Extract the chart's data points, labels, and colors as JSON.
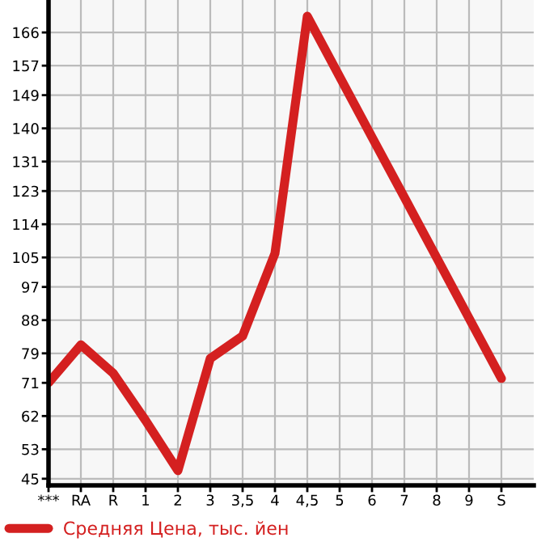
{
  "chart_data": {
    "type": "line",
    "categories": [
      "***",
      "RA",
      "R",
      "1",
      "2",
      "3",
      "3,5",
      "4",
      "4,5",
      "5",
      "6",
      "7",
      "8",
      "9",
      "S"
    ],
    "series": [
      {
        "name": "Средняя Цена, тыс. йен",
        "color": "#d42020",
        "values": [
          71.0,
          81.3,
          73.6,
          60.8,
          47.2,
          77.6,
          83.7,
          106.1,
          170.4,
          154.0,
          137.6,
          121.3,
          104.9,
          88.5,
          72.2
        ]
      }
    ],
    "ylim": [
      43.2,
      174.8
    ],
    "yticks": [
      45,
      53,
      62,
      71,
      79,
      88,
      97,
      105,
      114,
      123,
      131,
      140,
      149,
      157,
      166
    ],
    "grid": true,
    "legend": "bottom",
    "marker": "none",
    "line_style": "solid"
  }
}
